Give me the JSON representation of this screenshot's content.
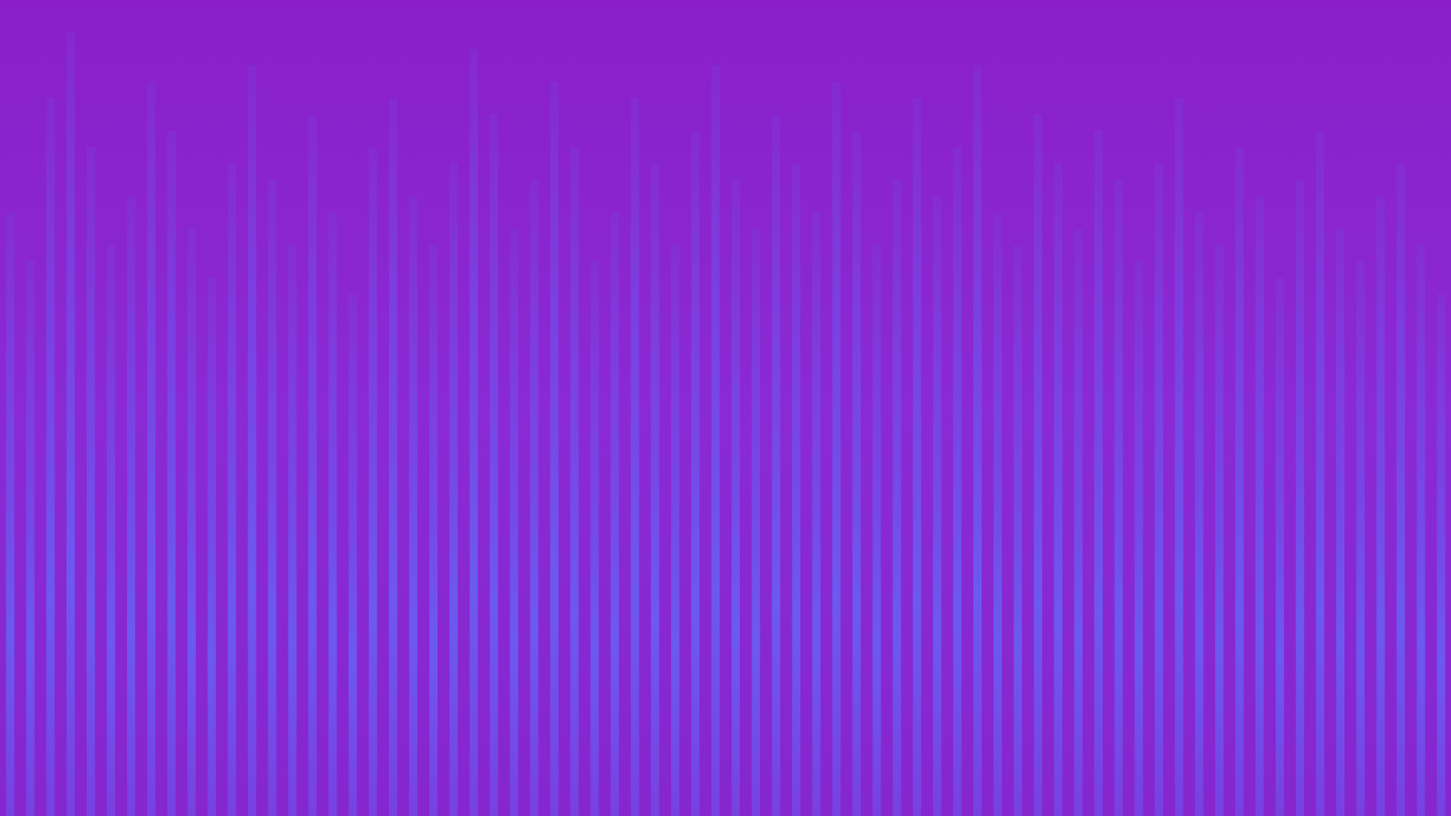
{
  "chart_data": {
    "type": "bar",
    "values": [
      74,
      68,
      88,
      96,
      82,
      70,
      76,
      90,
      84,
      72,
      66,
      80,
      92,
      78,
      70,
      86,
      74,
      64,
      82,
      88,
      76,
      70,
      80,
      94,
      86,
      72,
      78,
      90,
      82,
      68,
      74,
      88,
      80,
      70,
      84,
      92,
      78,
      72,
      86,
      80,
      74,
      90,
      84,
      70,
      78,
      88,
      76,
      82,
      92,
      74,
      70,
      86,
      80,
      72,
      84,
      78,
      68,
      80,
      88,
      74,
      70,
      82,
      76,
      66,
      78,
      84,
      72,
      68,
      76,
      80,
      70,
      64
    ],
    "color": "#6a5cf2",
    "ylim": [
      0,
      100
    ],
    "tick_labels": false,
    "grid": false
  }
}
